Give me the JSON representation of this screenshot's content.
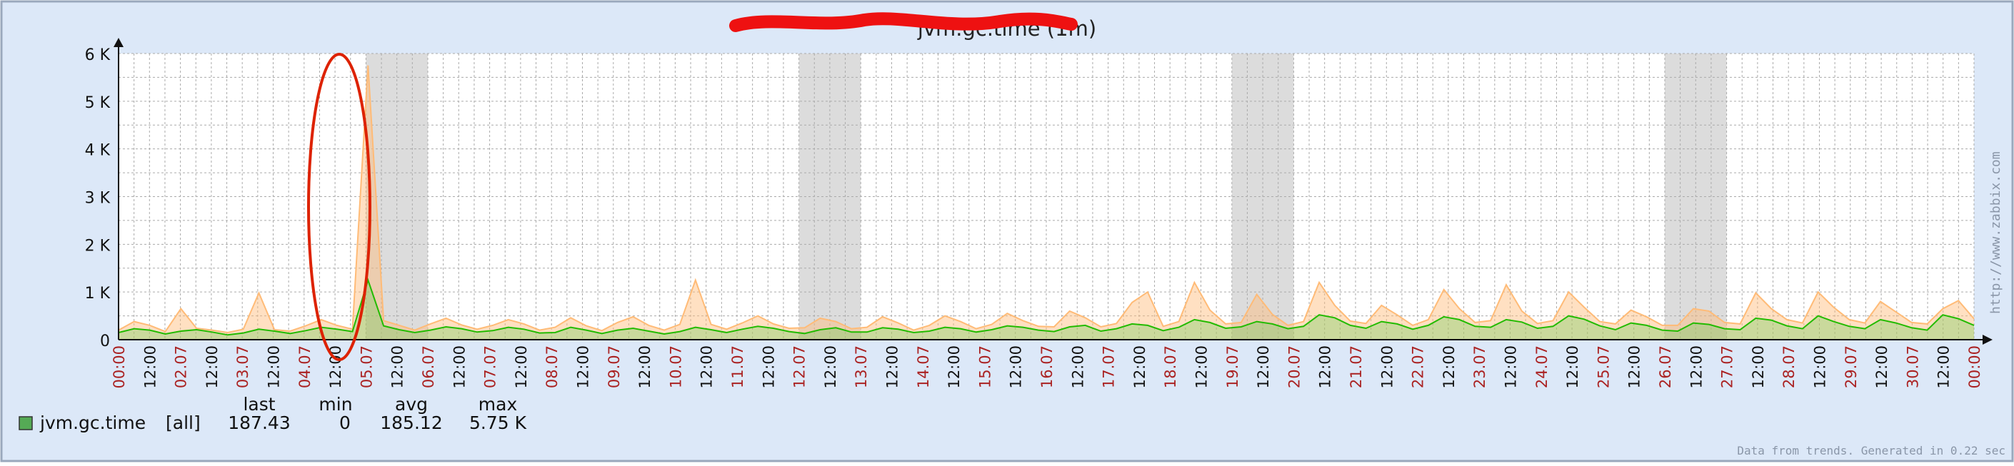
{
  "chart_data": {
    "type": "line",
    "title_visible": "jvm.gc.time  (1m)",
    "y_ticks": [
      "0",
      "1 K",
      "2 K",
      "3 K",
      "4 K",
      "5 K",
      "6 K"
    ],
    "ylim": [
      0,
      6000
    ],
    "x_ticks": [
      {
        "label": "00:00",
        "red": true
      },
      {
        "label": "12:00",
        "red": false
      },
      {
        "label": "02.07",
        "red": true
      },
      {
        "label": "12:00",
        "red": false
      },
      {
        "label": "03.07",
        "red": true
      },
      {
        "label": "12:00",
        "red": false
      },
      {
        "label": "04.07",
        "red": true
      },
      {
        "label": "12:00",
        "red": false
      },
      {
        "label": "05.07",
        "red": true
      },
      {
        "label": "12:00",
        "red": false
      },
      {
        "label": "06.07",
        "red": true
      },
      {
        "label": "12:00",
        "red": false
      },
      {
        "label": "07.07",
        "red": true
      },
      {
        "label": "12:00",
        "red": false
      },
      {
        "label": "08.07",
        "red": true
      },
      {
        "label": "12:00",
        "red": false
      },
      {
        "label": "09.07",
        "red": true
      },
      {
        "label": "12:00",
        "red": false
      },
      {
        "label": "10.07",
        "red": true
      },
      {
        "label": "12:00",
        "red": false
      },
      {
        "label": "11.07",
        "red": true
      },
      {
        "label": "12:00",
        "red": false
      },
      {
        "label": "12.07",
        "red": true
      },
      {
        "label": "12:00",
        "red": false
      },
      {
        "label": "13.07",
        "red": true
      },
      {
        "label": "12:00",
        "red": false
      },
      {
        "label": "14.07",
        "red": true
      },
      {
        "label": "12:00",
        "red": false
      },
      {
        "label": "15.07",
        "red": true
      },
      {
        "label": "12:00",
        "red": false
      },
      {
        "label": "16.07",
        "red": true
      },
      {
        "label": "12:00",
        "red": false
      },
      {
        "label": "17.07",
        "red": true
      },
      {
        "label": "12:00",
        "red": false
      },
      {
        "label": "18.07",
        "red": true
      },
      {
        "label": "12:00",
        "red": false
      },
      {
        "label": "19.07",
        "red": true
      },
      {
        "label": "12:00",
        "red": false
      },
      {
        "label": "20.07",
        "red": true
      },
      {
        "label": "12:00",
        "red": false
      },
      {
        "label": "21.07",
        "red": true
      },
      {
        "label": "12:00",
        "red": false
      },
      {
        "label": "22.07",
        "red": true
      },
      {
        "label": "12:00",
        "red": false
      },
      {
        "label": "23.07",
        "red": true
      },
      {
        "label": "12:00",
        "red": false
      },
      {
        "label": "24.07",
        "red": true
      },
      {
        "label": "12:00",
        "red": false
      },
      {
        "label": "25.07",
        "red": true
      },
      {
        "label": "12:00",
        "red": false
      },
      {
        "label": "26.07",
        "red": true
      },
      {
        "label": "12:00",
        "red": false
      },
      {
        "label": "27.07",
        "red": true
      },
      {
        "label": "12:00",
        "red": false
      },
      {
        "label": "28.07",
        "red": true
      },
      {
        "label": "12:00",
        "red": false
      },
      {
        "label": "29.07",
        "red": true
      },
      {
        "label": "12:00",
        "red": false
      },
      {
        "label": "30.07",
        "red": true
      },
      {
        "label": "12:00",
        "red": false
      },
      {
        "label": "00:00",
        "red": true
      }
    ],
    "grid": true,
    "weekend_shading": [
      [
        8,
        10
      ],
      [
        22,
        24
      ],
      [
        36,
        38
      ],
      [
        50,
        52
      ]
    ],
    "series": [
      {
        "name": "jvm.gc.time",
        "role": "avg",
        "color": "#22bb00",
        "values": [
          150,
          230,
          200,
          120,
          180,
          210,
          160,
          100,
          140,
          220,
          180,
          130,
          190,
          260,
          220,
          170,
          1250,
          290,
          210,
          150,
          200,
          270,
          230,
          160,
          190,
          260,
          220,
          140,
          150,
          260,
          200,
          130,
          200,
          240,
          180,
          120,
          170,
          260,
          210,
          150,
          220,
          280,
          240,
          170,
          130,
          210,
          250,
          160,
          160,
          250,
          220,
          150,
          180,
          260,
          230,
          160,
          210,
          290,
          260,
          200,
          170,
          270,
          300,
          180,
          230,
          330,
          300,
          190,
          260,
          420,
          360,
          240,
          270,
          380,
          330,
          230,
          280,
          520,
          460,
          300,
          240,
          380,
          330,
          220,
          300,
          480,
          420,
          280,
          260,
          420,
          370,
          240,
          280,
          500,
          430,
          290,
          210,
          350,
          300,
          200,
          180,
          350,
          320,
          230,
          210,
          450,
          410,
          290,
          230,
          500,
          380,
          280,
          230,
          420,
          350,
          250,
          200,
          520,
          440,
          300
        ]
      },
      {
        "name": "jvm.gc.time max",
        "role": "max",
        "color": "#ffbb77",
        "values": [
          200,
          380,
          300,
          170,
          650,
          240,
          200,
          150,
          220,
          980,
          210,
          180,
          290,
          420,
          300,
          220,
          5750,
          400,
          300,
          200,
          330,
          450,
          310,
          220,
          300,
          420,
          330,
          200,
          260,
          460,
          290,
          190,
          360,
          480,
          300,
          200,
          320,
          1250,
          320,
          220,
          350,
          500,
          330,
          240,
          250,
          450,
          380,
          230,
          260,
          480,
          350,
          200,
          300,
          500,
          380,
          230,
          320,
          550,
          400,
          280,
          270,
          600,
          460,
          270,
          340,
          780,
          1000,
          280,
          380,
          1200,
          620,
          330,
          360,
          950,
          530,
          300,
          380,
          1200,
          720,
          390,
          340,
          720,
          520,
          300,
          420,
          1050,
          650,
          360,
          400,
          1150,
          600,
          340,
          400,
          1000,
          680,
          380,
          330,
          620,
          480,
          300,
          300,
          650,
          600,
          360,
          330,
          980,
          650,
          420,
          350,
          1000,
          680,
          420,
          350,
          800,
          580,
          360,
          330,
          650,
          820,
          440
        ]
      }
    ],
    "legend": {
      "name": "jvm.gc.time",
      "scope": "[all]",
      "color": "#55aa55",
      "headers": [
        "last",
        "min",
        "avg",
        "max"
      ],
      "values": [
        "187.43",
        "0",
        "185.12",
        "5.75 K"
      ]
    },
    "footer_note": "Data from trends. Generated in 0.22 sec",
    "watermark": "http://www.zabbix.com"
  }
}
